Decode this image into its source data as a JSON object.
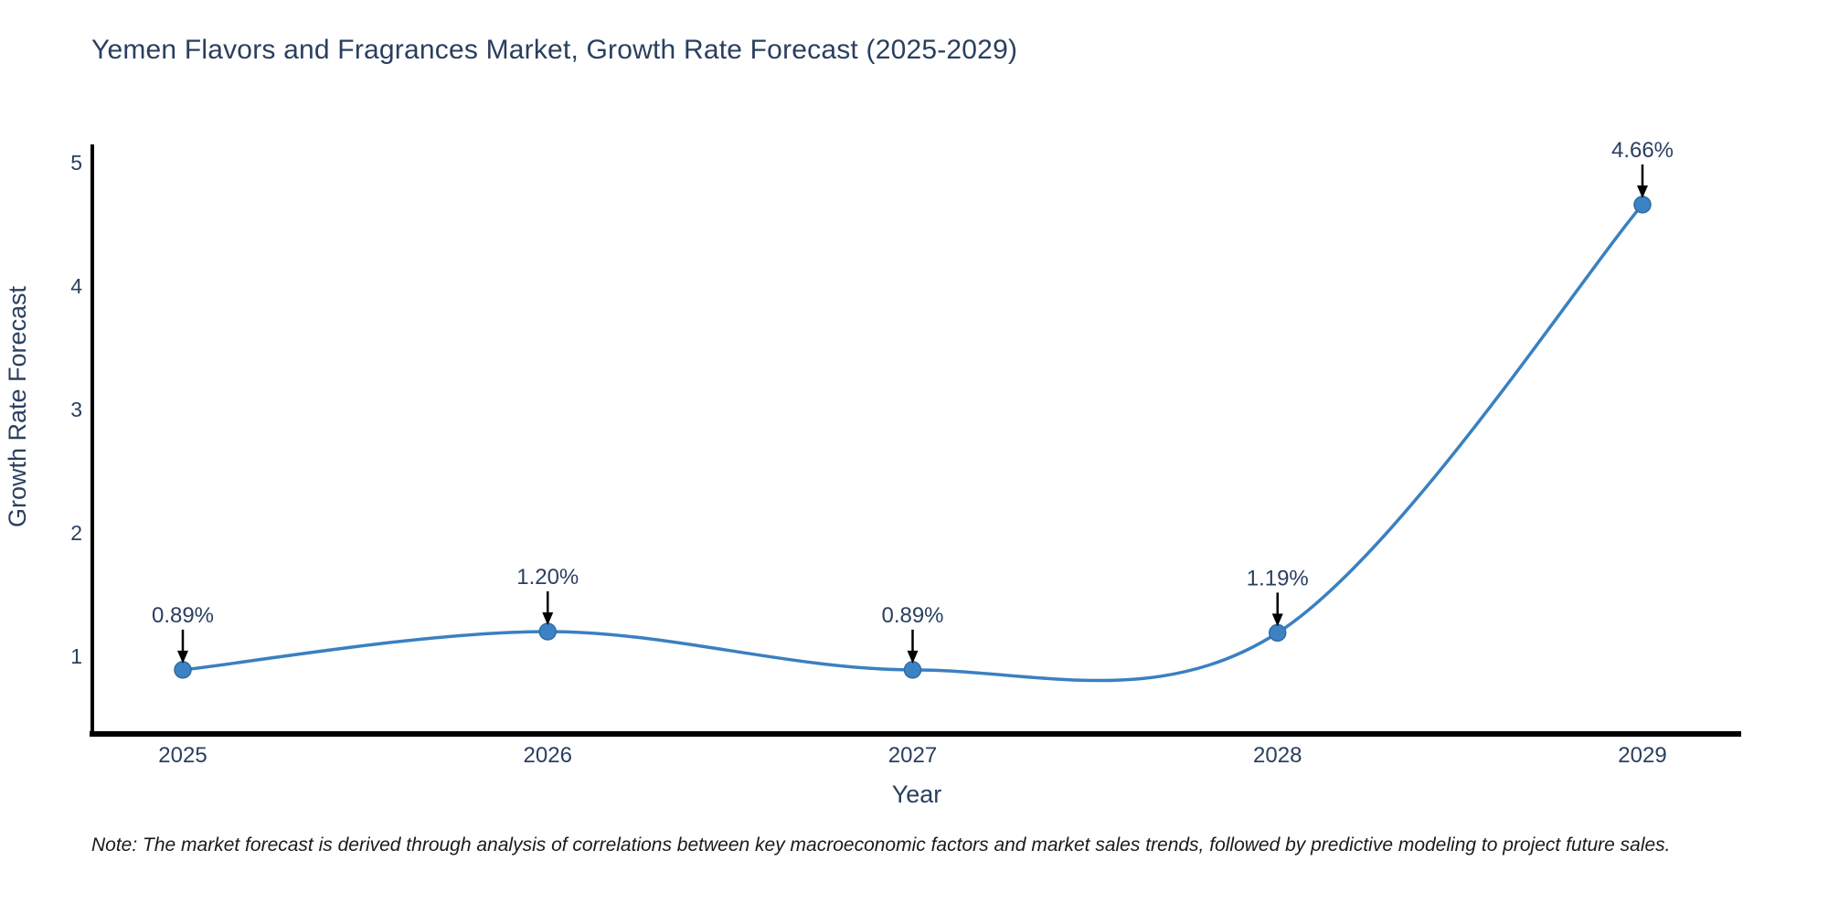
{
  "title": "Yemen Flavors and Fragrances Market, Growth Rate Forecast (2025-2029)",
  "note": "Note: The market forecast is derived through analysis of correlations between key macroeconomic factors and market sales trends, followed by predictive modeling to project future sales.",
  "chart_data": {
    "type": "line",
    "title": "Yemen Flavors and Fragrances Market, Growth Rate Forecast (2025-2029)",
    "xlabel": "Year",
    "ylabel": "Growth Rate Forecast",
    "x": [
      2025,
      2026,
      2027,
      2028,
      2029
    ],
    "x_tick_labels": [
      "2025",
      "2026",
      "2027",
      "2028",
      "2029"
    ],
    "values": [
      0.89,
      1.2,
      0.89,
      1.19,
      4.66
    ],
    "point_labels": [
      "0.89%",
      "1.20%",
      "0.89%",
      "1.19%",
      "4.66%"
    ],
    "y_ticks": [
      "1",
      "2",
      "3",
      "4",
      "5"
    ],
    "y_tick_values": [
      1,
      2,
      3,
      4,
      5
    ],
    "ylim": [
      0.35,
      5.15
    ],
    "curve": "spline",
    "grid": false,
    "legend": "none",
    "line_color": "#3a80c1",
    "marker_color": "#3d82c4",
    "marker_edge_color": "#2e6da4",
    "text_color": "#2a3f5f",
    "axis_color": "#000000",
    "annotation_arrow_color": "#000000"
  }
}
